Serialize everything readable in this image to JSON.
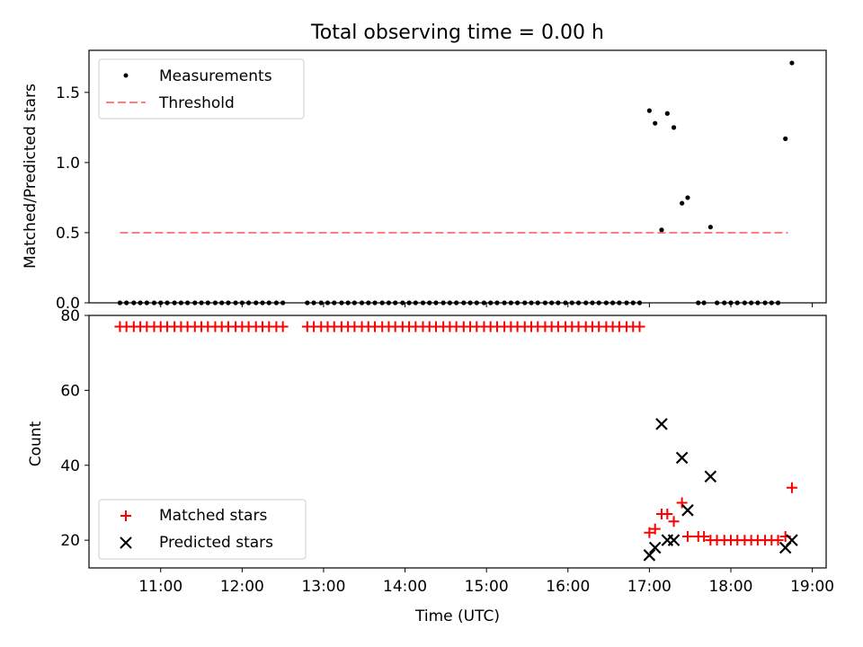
{
  "title": "Total observing time = 0.00 h",
  "chart_data": [
    {
      "type": "scatter",
      "panel": "top",
      "ylabel": "Matched/Predicted stars",
      "ylim": [
        0,
        1.8
      ],
      "yticks": [
        "0.0",
        "0.5",
        "1.0",
        "1.5"
      ],
      "xlim": [
        10.12,
        19.17
      ],
      "legend_position": "top-left",
      "series": [
        {
          "name": "Measurements",
          "marker": "dot",
          "color": "#000000",
          "x": [
            10.5,
            10.58,
            10.67,
            10.75,
            10.83,
            10.92,
            11.0,
            11.08,
            11.17,
            11.25,
            11.33,
            11.42,
            11.5,
            11.58,
            11.67,
            11.75,
            11.83,
            11.92,
            12.0,
            12.08,
            12.17,
            12.25,
            12.33,
            12.42,
            12.5,
            12.8,
            12.88,
            12.97,
            13.05,
            13.13,
            13.22,
            13.3,
            13.38,
            13.47,
            13.55,
            13.63,
            13.72,
            13.8,
            13.88,
            13.97,
            14.05,
            14.13,
            14.22,
            14.3,
            14.38,
            14.47,
            14.55,
            14.63,
            14.72,
            14.8,
            14.88,
            14.97,
            15.05,
            15.13,
            15.22,
            15.3,
            15.38,
            15.47,
            15.55,
            15.63,
            15.72,
            15.8,
            15.88,
            15.97,
            16.05,
            16.13,
            16.22,
            16.3,
            16.38,
            16.47,
            16.55,
            16.63,
            16.72,
            16.8,
            16.88,
            17.0,
            17.07,
            17.15,
            17.22,
            17.3,
            17.4,
            17.47,
            17.6,
            17.67,
            17.75,
            17.83,
            17.92,
            18.0,
            18.08,
            18.17,
            18.25,
            18.33,
            18.42,
            18.5,
            18.58,
            18.67,
            18.75
          ],
          "y": [
            0,
            0,
            0,
            0,
            0,
            0,
            0,
            0,
            0,
            0,
            0,
            0,
            0,
            0,
            0,
            0,
            0,
            0,
            0,
            0,
            0,
            0,
            0,
            0,
            0,
            0,
            0,
            0,
            0,
            0,
            0,
            0,
            0,
            0,
            0,
            0,
            0,
            0,
            0,
            0,
            0,
            0,
            0,
            0,
            0,
            0,
            0,
            0,
            0,
            0,
            0,
            0,
            0,
            0,
            0,
            0,
            0,
            0,
            0,
            0,
            0,
            0,
            0,
            0,
            0,
            0,
            0,
            0,
            0,
            0,
            0,
            0,
            0,
            0,
            0,
            1.37,
            1.28,
            0.52,
            1.35,
            1.25,
            0.71,
            0.75,
            0,
            0,
            0.54,
            0,
            0,
            0,
            0,
            0,
            0,
            0,
            0,
            0,
            0,
            1.17,
            1.71
          ]
        },
        {
          "name": "Threshold",
          "marker": "dashed-line",
          "color": "#ff7f7f",
          "x": [
            10.5,
            18.7
          ],
          "y": [
            0.5,
            0.5
          ]
        }
      ]
    },
    {
      "type": "scatter",
      "panel": "bottom",
      "ylabel": "Count",
      "xlabel": "Time (UTC)",
      "ylim": [
        12.6,
        80
      ],
      "yticks": [
        "20",
        "40",
        "60",
        "80"
      ],
      "xlim": [
        10.12,
        19.17
      ],
      "xticks": [
        "11:00",
        "12:00",
        "13:00",
        "14:00",
        "15:00",
        "16:00",
        "17:00",
        "18:00",
        "19:00"
      ],
      "xtick_values": [
        11,
        12,
        13,
        14,
        15,
        16,
        17,
        18,
        19
      ],
      "legend_position": "bottom-left",
      "series": [
        {
          "name": "Matched stars",
          "marker": "plus",
          "color": "#ff0000",
          "x": [
            10.5,
            10.58,
            10.67,
            10.75,
            10.83,
            10.92,
            11.0,
            11.08,
            11.17,
            11.25,
            11.33,
            11.42,
            11.5,
            11.58,
            11.67,
            11.75,
            11.83,
            11.92,
            12.0,
            12.08,
            12.17,
            12.25,
            12.33,
            12.42,
            12.5,
            12.8,
            12.88,
            12.97,
            13.05,
            13.13,
            13.22,
            13.3,
            13.38,
            13.47,
            13.55,
            13.63,
            13.72,
            13.8,
            13.88,
            13.97,
            14.05,
            14.13,
            14.22,
            14.3,
            14.38,
            14.47,
            14.55,
            14.63,
            14.72,
            14.8,
            14.88,
            14.97,
            15.05,
            15.13,
            15.22,
            15.3,
            15.38,
            15.47,
            15.55,
            15.63,
            15.72,
            15.8,
            15.88,
            15.97,
            16.05,
            16.13,
            16.22,
            16.3,
            16.38,
            16.47,
            16.55,
            16.63,
            16.72,
            16.8,
            16.88,
            17.0,
            17.07,
            17.15,
            17.22,
            17.3,
            17.4,
            17.47,
            17.6,
            17.67,
            17.75,
            17.83,
            17.92,
            18.0,
            18.08,
            18.17,
            18.25,
            18.33,
            18.42,
            18.5,
            18.58,
            18.67,
            18.75
          ],
          "y": [
            77,
            77,
            77,
            77,
            77,
            77,
            77,
            77,
            77,
            77,
            77,
            77,
            77,
            77,
            77,
            77,
            77,
            77,
            77,
            77,
            77,
            77,
            77,
            77,
            77,
            77,
            77,
            77,
            77,
            77,
            77,
            77,
            77,
            77,
            77,
            77,
            77,
            77,
            77,
            77,
            77,
            77,
            77,
            77,
            77,
            77,
            77,
            77,
            77,
            77,
            77,
            77,
            77,
            77,
            77,
            77,
            77,
            77,
            77,
            77,
            77,
            77,
            77,
            77,
            77,
            77,
            77,
            77,
            77,
            77,
            77,
            77,
            77,
            77,
            77,
            22,
            23,
            27,
            27,
            25,
            30,
            21,
            21,
            21,
            20,
            20,
            20,
            20,
            20,
            20,
            20,
            20,
            20,
            20,
            20,
            21,
            34
          ]
        },
        {
          "name": "Predicted stars",
          "marker": "x",
          "color": "#000000",
          "x": [
            17.0,
            17.07,
            17.15,
            17.22,
            17.3,
            17.4,
            17.47,
            17.75,
            18.67,
            18.75
          ],
          "y": [
            16,
            18,
            51,
            20,
            20,
            42,
            28,
            37,
            18,
            20
          ]
        }
      ]
    }
  ]
}
